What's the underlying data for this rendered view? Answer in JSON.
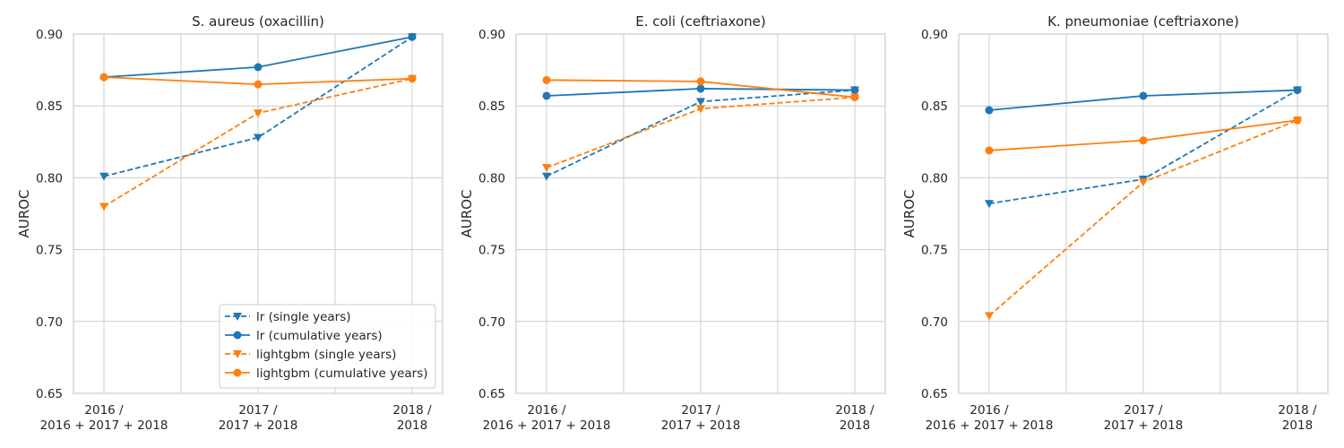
{
  "chart_data": [
    {
      "type": "line",
      "title": "S. aureus (oxacillin)",
      "xlabel": "",
      "ylabel": "AUROC",
      "ylim": [
        0.65,
        0.9
      ],
      "yticks": [
        "0.65",
        "0.70",
        "0.75",
        "0.80",
        "0.85",
        "0.90"
      ],
      "categories": [
        "2016 /\n2016 + 2017 + 2018",
        "2017 /\n2017 + 2018",
        "2018 /\n2018"
      ],
      "grid": true,
      "series": [
        {
          "name": "lr (single years)",
          "color": "#1f77b4",
          "dash": true,
          "marker": "triangle-down",
          "values": [
            0.801,
            0.828,
            0.898
          ]
        },
        {
          "name": "lr (cumulative years)",
          "color": "#1f77b4",
          "dash": false,
          "marker": "circle",
          "values": [
            0.87,
            0.877,
            0.898
          ]
        },
        {
          "name": "lightgbm (single years)",
          "color": "#ff7f0e",
          "dash": true,
          "marker": "triangle-down",
          "values": [
            0.78,
            0.845,
            0.869
          ]
        },
        {
          "name": "lightgbm (cumulative years)",
          "color": "#ff7f0e",
          "dash": false,
          "marker": "circle",
          "values": [
            0.87,
            0.865,
            0.869
          ]
        }
      ],
      "legend": "lower-right"
    },
    {
      "type": "line",
      "title": "E. coli (ceftriaxone)",
      "xlabel": "",
      "ylabel": "AUROC",
      "ylim": [
        0.65,
        0.9
      ],
      "yticks": [
        "0.65",
        "0.70",
        "0.75",
        "0.80",
        "0.85",
        "0.90"
      ],
      "categories": [
        "2016 /\n2016 + 2017 + 2018",
        "2017 /\n2017 + 2018",
        "2018 /\n2018"
      ],
      "grid": true,
      "series": [
        {
          "name": "lr (single years)",
          "color": "#1f77b4",
          "dash": true,
          "marker": "triangle-down",
          "values": [
            0.801,
            0.853,
            0.861
          ]
        },
        {
          "name": "lr (cumulative years)",
          "color": "#1f77b4",
          "dash": false,
          "marker": "circle",
          "values": [
            0.857,
            0.862,
            0.861
          ]
        },
        {
          "name": "lightgbm (single years)",
          "color": "#ff7f0e",
          "dash": true,
          "marker": "triangle-down",
          "values": [
            0.807,
            0.848,
            0.856
          ]
        },
        {
          "name": "lightgbm (cumulative years)",
          "color": "#ff7f0e",
          "dash": false,
          "marker": "circle",
          "values": [
            0.868,
            0.867,
            0.856
          ]
        }
      ]
    },
    {
      "type": "line",
      "title": "K. pneumoniae (ceftriaxone)",
      "xlabel": "",
      "ylabel": "AUROC",
      "ylim": [
        0.65,
        0.9
      ],
      "yticks": [
        "0.65",
        "0.70",
        "0.75",
        "0.80",
        "0.85",
        "0.90"
      ],
      "categories": [
        "2016 /\n2016 + 2017 + 2018",
        "2017 /\n2017 + 2018",
        "2018 /\n2018"
      ],
      "grid": true,
      "series": [
        {
          "name": "lr (single years)",
          "color": "#1f77b4",
          "dash": true,
          "marker": "triangle-down",
          "values": [
            0.782,
            0.799,
            0.861
          ]
        },
        {
          "name": "lr (cumulative years)",
          "color": "#1f77b4",
          "dash": false,
          "marker": "circle",
          "values": [
            0.847,
            0.857,
            0.861
          ]
        },
        {
          "name": "lightgbm (single years)",
          "color": "#ff7f0e",
          "dash": true,
          "marker": "triangle-down",
          "values": [
            0.704,
            0.797,
            0.84
          ]
        },
        {
          "name": "lightgbm (cumulative years)",
          "color": "#ff7f0e",
          "dash": false,
          "marker": "circle",
          "values": [
            0.819,
            0.826,
            0.84
          ]
        }
      ]
    }
  ]
}
